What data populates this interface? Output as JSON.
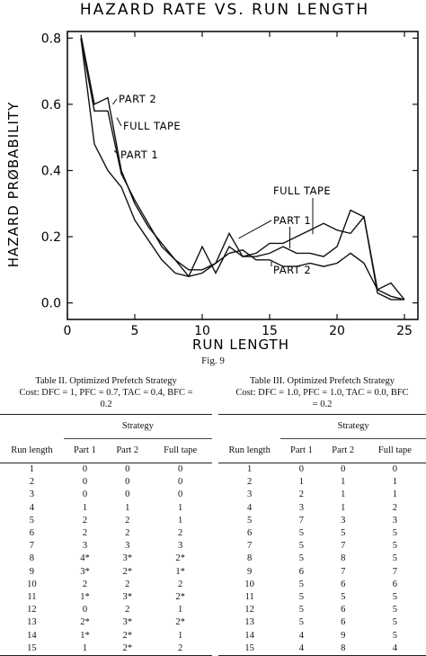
{
  "figure": {
    "caption": "Fig. 9"
  },
  "chart_data": {
    "type": "line",
    "title": "HAZARD RATE VS. RUN LENGTH",
    "xlabel": "RUN LENGTH",
    "ylabel": "HAZARD PRØBABILITY",
    "xlim": [
      0,
      26
    ],
    "ylim": [
      -0.05,
      0.82
    ],
    "x_ticks": [
      0,
      5,
      10,
      15,
      20,
      25
    ],
    "x_tick_labels": [
      "0",
      "5",
      "10",
      "15",
      "20",
      "25"
    ],
    "y_ticks": [
      0.0,
      0.2,
      0.4,
      0.6,
      0.8
    ],
    "y_tick_labels": [
      "0.0",
      "0.2",
      "0.4",
      "0.6",
      "0.8"
    ],
    "grid": false,
    "x": [
      1,
      2,
      3,
      4,
      5,
      6,
      7,
      8,
      9,
      10,
      11,
      12,
      13,
      14,
      15,
      16,
      17,
      18,
      19,
      20,
      21,
      22,
      23,
      24,
      25
    ],
    "series": [
      {
        "name": "PART 2",
        "values": [
          0.81,
          0.6,
          0.62,
          0.4,
          0.3,
          0.23,
          0.18,
          0.13,
          0.08,
          0.09,
          0.12,
          0.15,
          0.16,
          0.13,
          0.13,
          0.11,
          0.11,
          0.12,
          0.11,
          0.12,
          0.15,
          0.12,
          0.04,
          0.02,
          0.01
        ]
      },
      {
        "name": "FULL TAPE",
        "values": [
          0.8,
          0.58,
          0.58,
          0.39,
          0.31,
          0.24,
          0.17,
          0.13,
          0.1,
          0.1,
          0.12,
          0.21,
          0.14,
          0.15,
          0.18,
          0.18,
          0.2,
          0.22,
          0.24,
          0.22,
          0.21,
          0.26,
          0.04,
          0.06,
          0.01
        ]
      },
      {
        "name": "PART 1",
        "values": [
          0.8,
          0.48,
          0.4,
          0.35,
          0.25,
          0.19,
          0.13,
          0.09,
          0.08,
          0.17,
          0.09,
          0.17,
          0.14,
          0.14,
          0.15,
          0.17,
          0.15,
          0.15,
          0.14,
          0.17,
          0.28,
          0.26,
          0.03,
          0.01,
          0.01
        ]
      }
    ],
    "annotations": [
      {
        "text": "PART 2",
        "target_series": "PART 2",
        "x": 3.1,
        "y": 0.6
      },
      {
        "text": "FULL TAPE",
        "target_series": "FULL TAPE",
        "x": 3.4,
        "y": 0.56
      },
      {
        "text": "PART 1",
        "target_series": "PART 1",
        "x": 3.2,
        "y": 0.46
      },
      {
        "text": "FULL TAPE",
        "target_series": "FULL TAPE",
        "x": 18.2,
        "y": 0.2
      },
      {
        "text": "PART 1",
        "target_series": "PART 1",
        "x": 12.8,
        "y": 0.18
      },
      {
        "text": "PART 2",
        "target_series": "PART 2",
        "x": 15.2,
        "y": 0.12
      }
    ]
  },
  "table2": {
    "caption_line1": "Table II.   Optimized Prefetch Strategy",
    "caption_line2": "Cost: DFC = 1, PFC = 0.7, TAC = 0.4, BFC =",
    "caption_line3": "0.2",
    "group_header": "Strategy",
    "columns": [
      "Run length",
      "Part 1",
      "Part 2",
      "Full tape"
    ],
    "rows": [
      [
        "1",
        "0",
        "0",
        "0"
      ],
      [
        "2",
        "0",
        "0",
        "0"
      ],
      [
        "3",
        "0",
        "0",
        "0"
      ],
      [
        "4",
        "1",
        "1",
        "1"
      ],
      [
        "5",
        "2",
        "2",
        "1"
      ],
      [
        "6",
        "2",
        "2",
        "2"
      ],
      [
        "7",
        "3",
        "3",
        "3"
      ],
      [
        "8",
        "4*",
        "3*",
        "2*"
      ],
      [
        "9",
        "3*",
        "2*",
        "1*"
      ],
      [
        "10",
        "2",
        "2",
        "2"
      ],
      [
        "11",
        "1*",
        "3*",
        "2*"
      ],
      [
        "12",
        "0",
        "2",
        "1"
      ],
      [
        "13",
        "2*",
        "3*",
        "2*"
      ],
      [
        "14",
        "1*",
        "2*",
        "1"
      ],
      [
        "15",
        "1",
        "2*",
        "2"
      ]
    ]
  },
  "table3": {
    "caption_line1": "Table III.   Optimized Prefetch Strategy",
    "caption_line2": "Cost: DFC = 1.0, PFC = 1.0, TAC = 0.0, BFC",
    "caption_line3": "= 0.2",
    "group_header": "Strategy",
    "columns": [
      "Run length",
      "Part 1",
      "Part 2",
      "Full tape"
    ],
    "rows": [
      [
        "1",
        "0",
        "0",
        "0"
      ],
      [
        "2",
        "1",
        "1",
        "1"
      ],
      [
        "3",
        "2",
        "1",
        "1"
      ],
      [
        "4",
        "3",
        "1",
        "2"
      ],
      [
        "5",
        "7",
        "3",
        "3"
      ],
      [
        "6",
        "5",
        "5",
        "5"
      ],
      [
        "7",
        "5",
        "7",
        "5"
      ],
      [
        "8",
        "5",
        "8",
        "5"
      ],
      [
        "9",
        "6",
        "7",
        "7"
      ],
      [
        "10",
        "5",
        "6",
        "6"
      ],
      [
        "11",
        "5",
        "5",
        "5"
      ],
      [
        "12",
        "5",
        "6",
        "5"
      ],
      [
        "13",
        "5",
        "6",
        "5"
      ],
      [
        "14",
        "4",
        "9",
        "5"
      ],
      [
        "15",
        "4",
        "8",
        "4"
      ]
    ]
  }
}
